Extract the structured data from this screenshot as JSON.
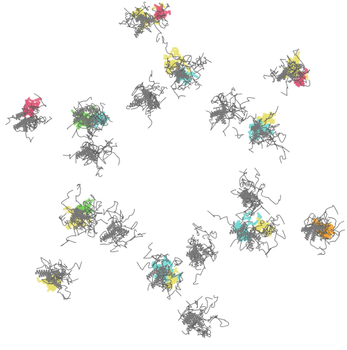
{
  "image": {
    "subject": "protein-structure-ribbon-diagram",
    "background_color": "#ffffff",
    "line_color": "#555555",
    "palette": {
      "gray": "#5a5a5a",
      "yellow": "#e8e070",
      "cyan": "#6fd6d0",
      "green": "#7ad060",
      "pink": "#e05a78",
      "orange": "#f0a030"
    }
  }
}
